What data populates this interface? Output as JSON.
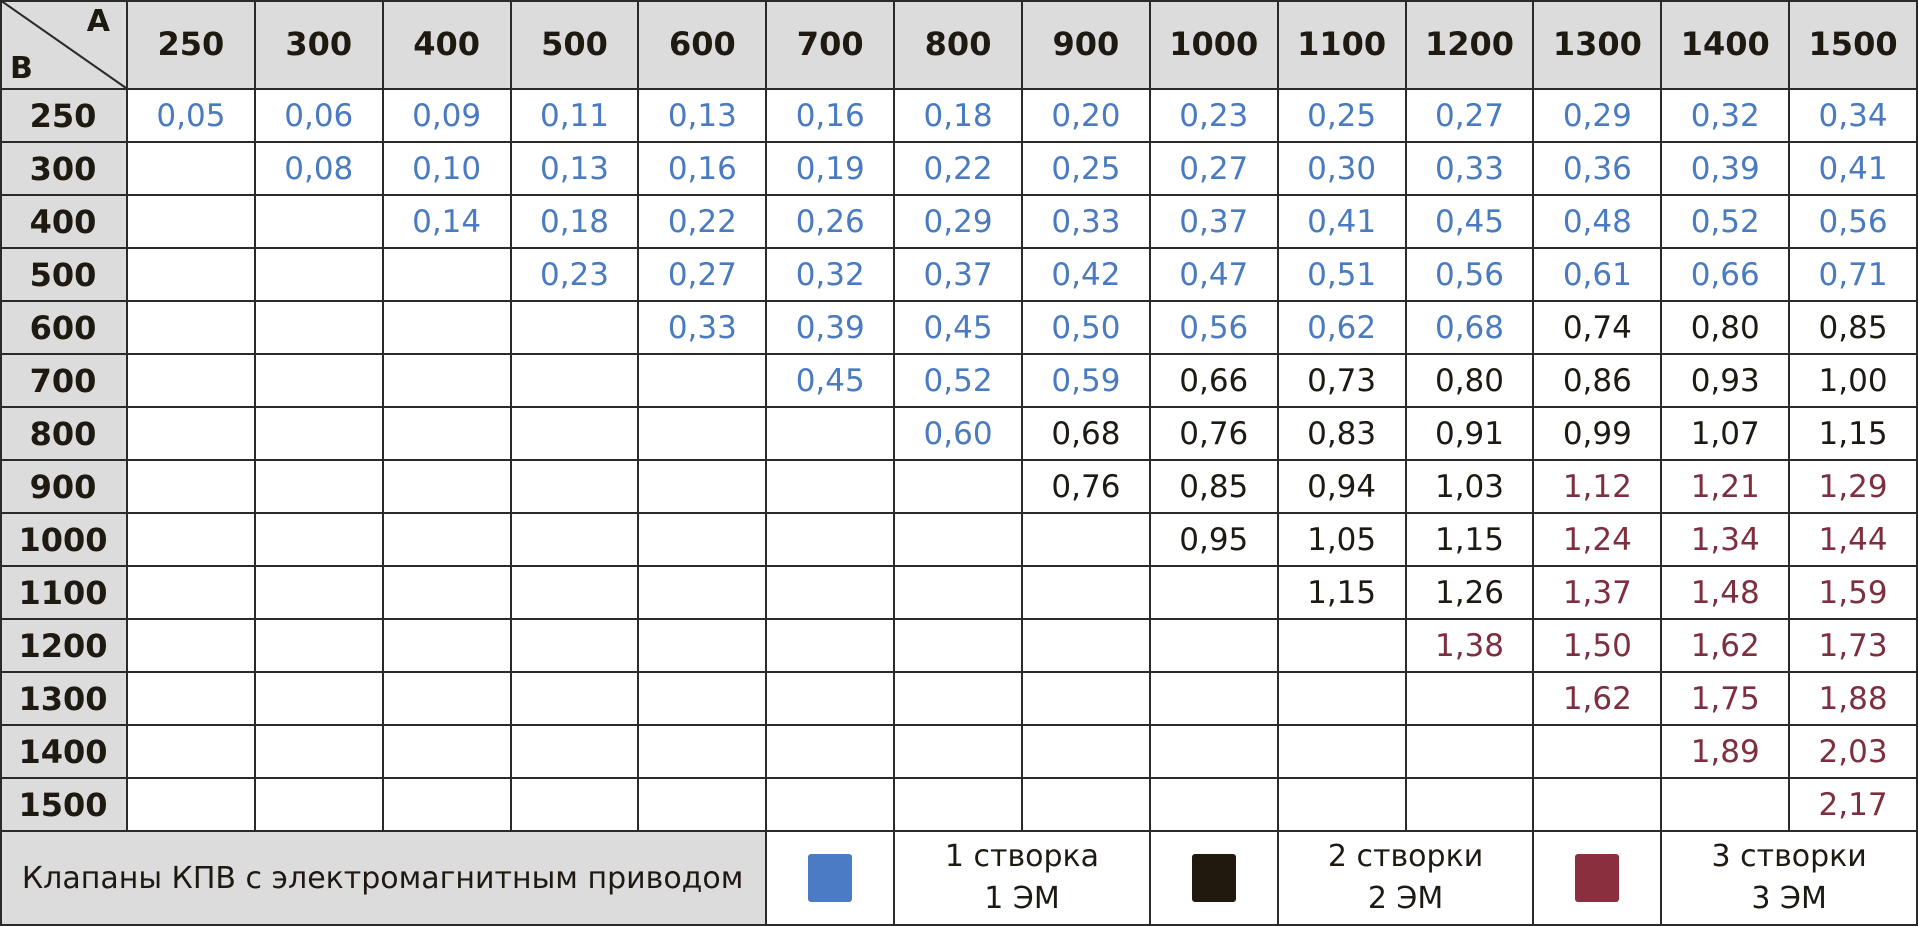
{
  "header": {
    "corner_a": "A",
    "corner_b": "B"
  },
  "table": {
    "columns": [
      "250",
      "300",
      "400",
      "500",
      "600",
      "700",
      "800",
      "900",
      "1000",
      "1100",
      "1200",
      "1300",
      "1400",
      "1500"
    ],
    "rows": [
      {
        "label": "250",
        "cells": [
          {
            "text": "0,05",
            "color": "#4a7abf"
          },
          {
            "text": "0,06",
            "color": "#4a7abf"
          },
          {
            "text": "0,09",
            "color": "#4a7abf"
          },
          {
            "text": "0,11",
            "color": "#4a7abf"
          },
          {
            "text": "0,13",
            "color": "#4a7abf"
          },
          {
            "text": "0,16",
            "color": "#4a7abf"
          },
          {
            "text": "0,18",
            "color": "#4a7abf"
          },
          {
            "text": "0,20",
            "color": "#4a7abf"
          },
          {
            "text": "0,23",
            "color": "#4a7abf"
          },
          {
            "text": "0,25",
            "color": "#4a7abf"
          },
          {
            "text": "0,27",
            "color": "#4a7abf"
          },
          {
            "text": "0,29",
            "color": "#4a7abf"
          },
          {
            "text": "0,32",
            "color": "#4a7abf"
          },
          {
            "text": "0,34",
            "color": "#4a7abf"
          }
        ]
      },
      {
        "label": "300",
        "cells": [
          null,
          {
            "text": "0,08",
            "color": "#4a7abf"
          },
          {
            "text": "0,10",
            "color": "#4a7abf"
          },
          {
            "text": "0,13",
            "color": "#4a7abf"
          },
          {
            "text": "0,16",
            "color": "#4a7abf"
          },
          {
            "text": "0,19",
            "color": "#4a7abf"
          },
          {
            "text": "0,22",
            "color": "#4a7abf"
          },
          {
            "text": "0,25",
            "color": "#4a7abf"
          },
          {
            "text": "0,27",
            "color": "#4a7abf"
          },
          {
            "text": "0,30",
            "color": "#4a7abf"
          },
          {
            "text": "0,33",
            "color": "#4a7abf"
          },
          {
            "text": "0,36",
            "color": "#4a7abf"
          },
          {
            "text": "0,39",
            "color": "#4a7abf"
          },
          {
            "text": "0,41",
            "color": "#4a7abf"
          }
        ]
      },
      {
        "label": "400",
        "cells": [
          null,
          null,
          {
            "text": "0,14",
            "color": "#4a7abf"
          },
          {
            "text": "0,18",
            "color": "#4a7abf"
          },
          {
            "text": "0,22",
            "color": "#4a7abf"
          },
          {
            "text": "0,26",
            "color": "#4a7abf"
          },
          {
            "text": "0,29",
            "color": "#4a7abf"
          },
          {
            "text": "0,33",
            "color": "#4a7abf"
          },
          {
            "text": "0,37",
            "color": "#4a7abf"
          },
          {
            "text": "0,41",
            "color": "#4a7abf"
          },
          {
            "text": "0,45",
            "color": "#4a7abf"
          },
          {
            "text": "0,48",
            "color": "#4a7abf"
          },
          {
            "text": "0,52",
            "color": "#4a7abf"
          },
          {
            "text": "0,56",
            "color": "#4a7abf"
          }
        ]
      },
      {
        "label": "500",
        "cells": [
          null,
          null,
          null,
          {
            "text": "0,23",
            "color": "#4a7abf"
          },
          {
            "text": "0,27",
            "color": "#4a7abf"
          },
          {
            "text": "0,32",
            "color": "#4a7abf"
          },
          {
            "text": "0,37",
            "color": "#4a7abf"
          },
          {
            "text": "0,42",
            "color": "#4a7abf"
          },
          {
            "text": "0,47",
            "color": "#4a7abf"
          },
          {
            "text": "0,51",
            "color": "#4a7abf"
          },
          {
            "text": "0,56",
            "color": "#4a7abf"
          },
          {
            "text": "0,61",
            "color": "#4a7abf"
          },
          {
            "text": "0,66",
            "color": "#4a7abf"
          },
          {
            "text": "0,71",
            "color": "#4a7abf"
          }
        ]
      },
      {
        "label": "600",
        "cells": [
          null,
          null,
          null,
          null,
          {
            "text": "0,33",
            "color": "#4a7abf"
          },
          {
            "text": "0,39",
            "color": "#4a7abf"
          },
          {
            "text": "0,45",
            "color": "#4a7abf"
          },
          {
            "text": "0,50",
            "color": "#4a7abf"
          },
          {
            "text": "0,56",
            "color": "#4a7abf"
          },
          {
            "text": "0,62",
            "color": "#4a7abf"
          },
          {
            "text": "0,68",
            "color": "#4a7abf"
          },
          {
            "text": "0,74",
            "color": "#1e1a12"
          },
          {
            "text": "0,80",
            "color": "#1e1a12"
          },
          {
            "text": "0,85",
            "color": "#1e1a12"
          }
        ]
      },
      {
        "label": "700",
        "cells": [
          null,
          null,
          null,
          null,
          null,
          {
            "text": "0,45",
            "color": "#4a7abf"
          },
          {
            "text": "0,52",
            "color": "#4a7abf"
          },
          {
            "text": "0,59",
            "color": "#4a7abf"
          },
          {
            "text": "0,66",
            "color": "#1e1a12"
          },
          {
            "text": "0,73",
            "color": "#1e1a12"
          },
          {
            "text": "0,80",
            "color": "#1e1a12"
          },
          {
            "text": "0,86",
            "color": "#1e1a12"
          },
          {
            "text": "0,93",
            "color": "#1e1a12"
          },
          {
            "text": "1,00",
            "color": "#1e1a12"
          }
        ]
      },
      {
        "label": "800",
        "cells": [
          null,
          null,
          null,
          null,
          null,
          null,
          {
            "text": "0,60",
            "color": "#4a7abf"
          },
          {
            "text": "0,68",
            "color": "#1e1a12"
          },
          {
            "text": "0,76",
            "color": "#1e1a12"
          },
          {
            "text": "0,83",
            "color": "#1e1a12"
          },
          {
            "text": "0,91",
            "color": "#1e1a12"
          },
          {
            "text": "0,99",
            "color": "#1e1a12"
          },
          {
            "text": "1,07",
            "color": "#1e1a12"
          },
          {
            "text": "1,15",
            "color": "#1e1a12"
          }
        ]
      },
      {
        "label": "900",
        "cells": [
          null,
          null,
          null,
          null,
          null,
          null,
          null,
          {
            "text": "0,76",
            "color": "#1e1a12"
          },
          {
            "text": "0,85",
            "color": "#1e1a12"
          },
          {
            "text": "0,94",
            "color": "#1e1a12"
          },
          {
            "text": "1,03",
            "color": "#1e1a12"
          },
          {
            "text": "1,12",
            "color": "#7d2f3f"
          },
          {
            "text": "1,21",
            "color": "#7d2f3f"
          },
          {
            "text": "1,29",
            "color": "#7d2f3f"
          }
        ]
      },
      {
        "label": "1000",
        "cells": [
          null,
          null,
          null,
          null,
          null,
          null,
          null,
          null,
          {
            "text": "0,95",
            "color": "#1e1a12"
          },
          {
            "text": "1,05",
            "color": "#1e1a12"
          },
          {
            "text": "1,15",
            "color": "#1e1a12"
          },
          {
            "text": "1,24",
            "color": "#7d2f3f"
          },
          {
            "text": "1,34",
            "color": "#7d2f3f"
          },
          {
            "text": "1,44",
            "color": "#7d2f3f"
          }
        ]
      },
      {
        "label": "1100",
        "cells": [
          null,
          null,
          null,
          null,
          null,
          null,
          null,
          null,
          null,
          {
            "text": "1,15",
            "color": "#1e1a12"
          },
          {
            "text": "1,26",
            "color": "#1e1a12"
          },
          {
            "text": "1,37",
            "color": "#7d2f3f"
          },
          {
            "text": "1,48",
            "color": "#7d2f3f"
          },
          {
            "text": "1,59",
            "color": "#7d2f3f"
          }
        ]
      },
      {
        "label": "1200",
        "cells": [
          null,
          null,
          null,
          null,
          null,
          null,
          null,
          null,
          null,
          null,
          {
            "text": "1,38",
            "color": "#7d2f3f"
          },
          {
            "text": "1,50",
            "color": "#7d2f3f"
          },
          {
            "text": "1,62",
            "color": "#7d2f3f"
          },
          {
            "text": "1,73",
            "color": "#7d2f3f"
          }
        ]
      },
      {
        "label": "1300",
        "cells": [
          null,
          null,
          null,
          null,
          null,
          null,
          null,
          null,
          null,
          null,
          null,
          {
            "text": "1,62",
            "color": "#7d2f3f"
          },
          {
            "text": "1,75",
            "color": "#7d2f3f"
          },
          {
            "text": "1,88",
            "color": "#7d2f3f"
          }
        ]
      },
      {
        "label": "1400",
        "cells": [
          null,
          null,
          null,
          null,
          null,
          null,
          null,
          null,
          null,
          null,
          null,
          null,
          {
            "text": "1,89",
            "color": "#7d2f3f"
          },
          {
            "text": "2,03",
            "color": "#7d2f3f"
          }
        ]
      },
      {
        "label": "1500",
        "cells": [
          null,
          null,
          null,
          null,
          null,
          null,
          null,
          null,
          null,
          null,
          null,
          null,
          null,
          {
            "text": "2,17",
            "color": "#7d2f3f"
          }
        ]
      }
    ]
  },
  "legend": {
    "title": "Клапаны КПВ с электромагнитным приводом",
    "items": [
      {
        "color": "#4a7bc4",
        "line1": "1 створка",
        "line2": "1 ЭМ"
      },
      {
        "color": "#22190e",
        "line1": "2 створки",
        "line2": "2 ЭМ"
      },
      {
        "color": "#8a2f3d",
        "line1": "3 створки",
        "line2": "3 ЭМ"
      }
    ]
  }
}
